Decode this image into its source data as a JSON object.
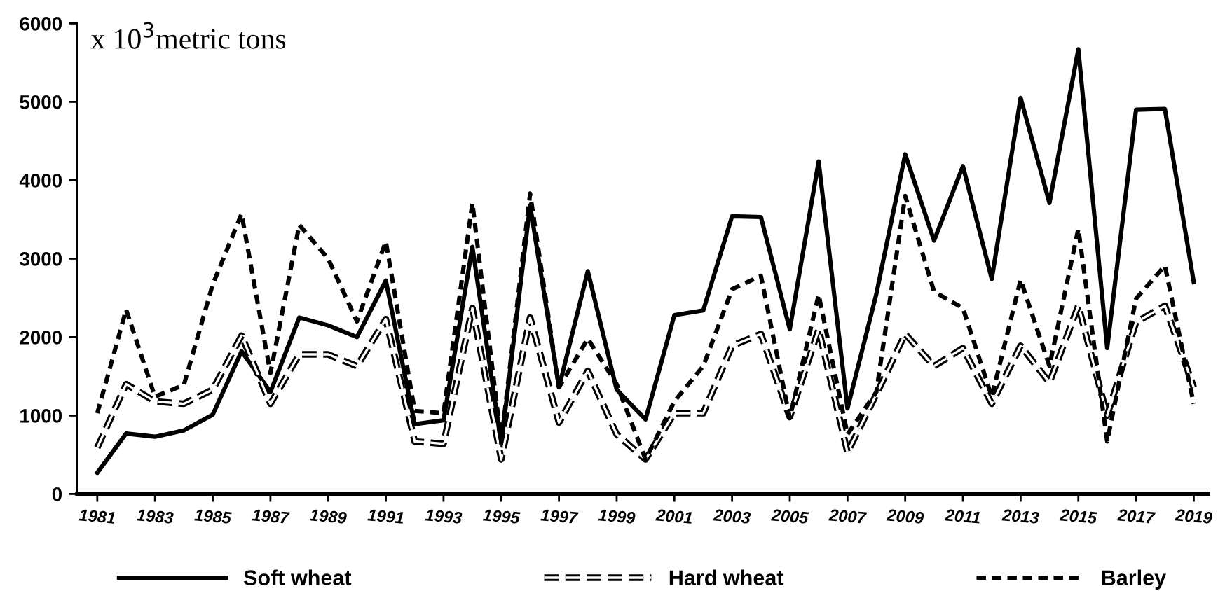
{
  "chart_data": {
    "type": "line",
    "ylabel": "x 10$^{3}$metric tons",
    "x": [
      1981,
      1982,
      1983,
      1984,
      1985,
      1986,
      1987,
      1988,
      1989,
      1990,
      1991,
      1992,
      1993,
      1994,
      1995,
      1996,
      1997,
      1998,
      1999,
      2000,
      2001,
      2002,
      2003,
      2004,
      2005,
      2006,
      2007,
      2008,
      2009,
      2010,
      2011,
      2012,
      2013,
      2014,
      2015,
      2016,
      2017,
      2018,
      2019
    ],
    "series": [
      {
        "name": "Soft wheat",
        "color": "#000000",
        "line_style": "solid",
        "values": [
          270,
          770,
          730,
          810,
          1010,
          1820,
          1300,
          2250,
          2150,
          2000,
          2720,
          890,
          940,
          3150,
          640,
          3680,
          1360,
          2840,
          1330,
          950,
          2280,
          2340,
          3540,
          3530,
          2100,
          4240,
          1090,
          2550,
          4330,
          3230,
          4180,
          2740,
          5050,
          3710,
          5670,
          1860,
          4900,
          4910,
          2700
        ]
      },
      {
        "name": "Hard wheat",
        "color": "#000000",
        "line_style": "dashed",
        "values": [
          590,
          1400,
          1180,
          1150,
          1330,
          2020,
          1150,
          1780,
          1780,
          1630,
          2230,
          670,
          640,
          2370,
          440,
          2250,
          910,
          1570,
          760,
          440,
          1030,
          1030,
          1890,
          2040,
          980,
          2100,
          530,
          1270,
          2040,
          1630,
          1860,
          1150,
          1890,
          1420,
          2400,
          1000,
          2190,
          2400,
          1360
        ]
      },
      {
        "name": "Barley",
        "color": "#000000",
        "line_style": "dotted",
        "values": [
          1030,
          2350,
          1240,
          1390,
          2670,
          3570,
          1540,
          3430,
          3000,
          2200,
          3220,
          1060,
          1030,
          3710,
          670,
          3830,
          1360,
          1980,
          1400,
          440,
          1180,
          1630,
          2610,
          2780,
          970,
          2540,
          760,
          1300,
          3800,
          2580,
          2370,
          1240,
          2730,
          1630,
          3380,
          670,
          2490,
          2910,
          1150
        ]
      }
    ],
    "xlim": [
      1980.3,
      2019.5
    ],
    "xticks": [
      1981,
      1983,
      1985,
      1987,
      1989,
      1991,
      1993,
      1995,
      1997,
      1999,
      2001,
      2003,
      2005,
      2007,
      2009,
      2011,
      2013,
      2015,
      2017,
      2019
    ],
    "ylim": [
      0,
      6000
    ],
    "yticks": [
      0,
      1000,
      2000,
      3000,
      4000,
      5000,
      6000
    ],
    "grid": false,
    "legend": "bottom"
  }
}
